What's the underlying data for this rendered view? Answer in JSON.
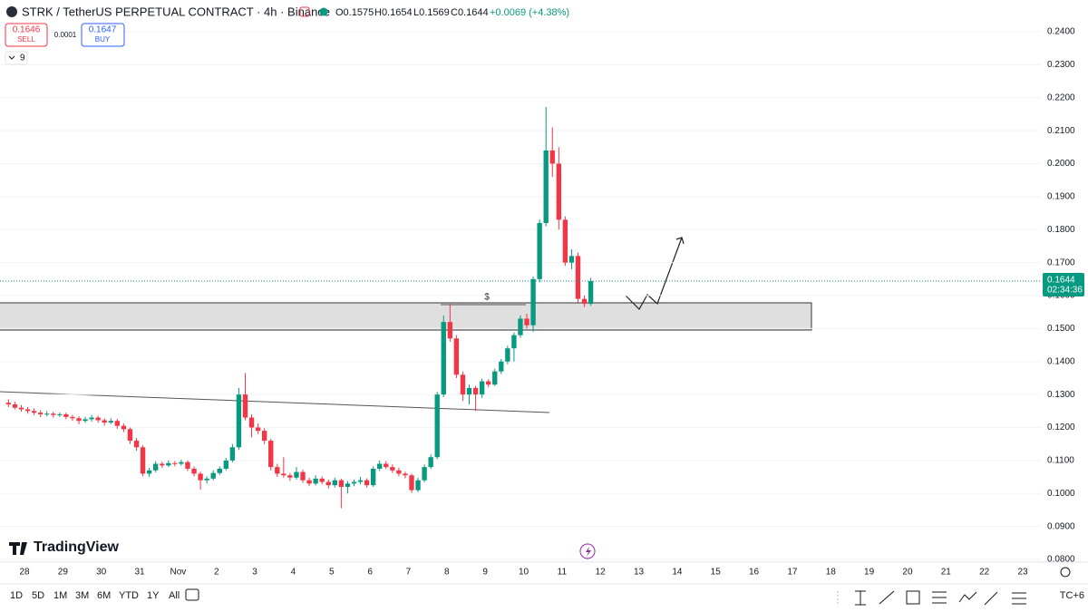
{
  "header": {
    "symbol_title": "STRK / TetherUS PERPETUAL CONTRACT · 4h · Binance",
    "ohlc": [
      "O0.1575",
      "H0.1654",
      "L0.1569",
      "C0.1644"
    ],
    "change": "+0.0069 (+4.38%)",
    "sell_price": "0.1646",
    "sell_label": "SELL",
    "spread": "0.0001",
    "buy_price": "0.1647",
    "buy_label": "BUY",
    "indicator_count": "9"
  },
  "chart_data": {
    "type": "candlestick",
    "x_labels": [
      "28",
      "29",
      "30",
      "31",
      "Nov",
      "2",
      "3",
      "4",
      "5",
      "6",
      "7",
      "8",
      "9",
      "10",
      "11",
      "12",
      "13",
      "14",
      "15",
      "16",
      "17",
      "18",
      "19",
      "20",
      "21",
      "22",
      "23"
    ],
    "candles": [
      [
        0.1275,
        0.1285,
        0.1262,
        0.127
      ],
      [
        0.127,
        0.1278,
        0.1255,
        0.126
      ],
      [
        0.126,
        0.1268,
        0.1248,
        0.1255
      ],
      [
        0.1255,
        0.1262,
        0.1242,
        0.125
      ],
      [
        0.125,
        0.1258,
        0.1238,
        0.1245
      ],
      [
        0.1245,
        0.1252,
        0.1232,
        0.124
      ],
      [
        0.124,
        0.125,
        0.1234,
        0.1242
      ],
      [
        0.1242,
        0.1248,
        0.123,
        0.1238
      ],
      [
        0.1238,
        0.1246,
        0.1232,
        0.124
      ],
      [
        0.124,
        0.1245,
        0.1225,
        0.1232
      ],
      [
        0.1232,
        0.1238,
        0.122,
        0.1228
      ],
      [
        0.1228,
        0.1234,
        0.121,
        0.122
      ],
      [
        0.122,
        0.1232,
        0.1214,
        0.1225
      ],
      [
        0.1225,
        0.1238,
        0.1218,
        0.123
      ],
      [
        0.123,
        0.1236,
        0.1214,
        0.1222
      ],
      [
        0.1222,
        0.1228,
        0.1206,
        0.1215
      ],
      [
        0.1215,
        0.1228,
        0.121,
        0.122
      ],
      [
        0.122,
        0.1226,
        0.1196,
        0.1205
      ],
      [
        0.1205,
        0.1212,
        0.1186,
        0.1195
      ],
      [
        0.1195,
        0.12,
        0.115,
        0.116
      ],
      [
        0.116,
        0.1168,
        0.113,
        0.114
      ],
      [
        0.114,
        0.1146,
        0.1052,
        0.106
      ],
      [
        0.106,
        0.1078,
        0.105,
        0.107
      ],
      [
        0.107,
        0.1098,
        0.1064,
        0.109
      ],
      [
        0.109,
        0.1096,
        0.1078,
        0.1085
      ],
      [
        0.1085,
        0.11,
        0.108,
        0.1092
      ],
      [
        0.1092,
        0.1098,
        0.1082,
        0.109
      ],
      [
        0.109,
        0.1102,
        0.1084,
        0.1095
      ],
      [
        0.1095,
        0.11,
        0.1068,
        0.1075
      ],
      [
        0.1075,
        0.1082,
        0.1052,
        0.106
      ],
      [
        0.106,
        0.1066,
        0.1012,
        0.104
      ],
      [
        0.104,
        0.1052,
        0.103,
        0.1045
      ],
      [
        0.1045,
        0.107,
        0.104,
        0.1062
      ],
      [
        0.1062,
        0.1082,
        0.1056,
        0.1075
      ],
      [
        0.1075,
        0.1108,
        0.107,
        0.11
      ],
      [
        0.11,
        0.115,
        0.1094,
        0.114
      ],
      [
        0.114,
        0.132,
        0.1132,
        0.13
      ],
      [
        0.13,
        0.1365,
        0.1222,
        0.123
      ],
      [
        0.123,
        0.124,
        0.117,
        0.12
      ],
      [
        0.12,
        0.1212,
        0.118,
        0.119
      ],
      [
        0.119,
        0.1198,
        0.115,
        0.116
      ],
      [
        0.116,
        0.1166,
        0.107,
        0.108
      ],
      [
        0.108,
        0.109,
        0.105,
        0.106
      ],
      [
        0.106,
        0.111,
        0.1048,
        0.1055
      ],
      [
        0.1055,
        0.1062,
        0.1038,
        0.1048
      ],
      [
        0.1048,
        0.108,
        0.1042,
        0.1065
      ],
      [
        0.1065,
        0.1072,
        0.1032,
        0.104
      ],
      [
        0.104,
        0.1048,
        0.1022,
        0.103
      ],
      [
        0.103,
        0.1055,
        0.1024,
        0.1045
      ],
      [
        0.1045,
        0.1052,
        0.1028,
        0.1035
      ],
      [
        0.1035,
        0.1042,
        0.1015,
        0.1025
      ],
      [
        0.1025,
        0.1048,
        0.1018,
        0.104
      ],
      [
        0.104,
        0.1045,
        0.0955,
        0.102
      ],
      [
        0.102,
        0.1038,
        0.1,
        0.103
      ],
      [
        0.103,
        0.1042,
        0.1022,
        0.1035
      ],
      [
        0.1035,
        0.105,
        0.1028,
        0.104
      ],
      [
        0.104,
        0.1046,
        0.1018,
        0.1025
      ],
      [
        0.1025,
        0.1082,
        0.102,
        0.1075
      ],
      [
        0.1075,
        0.11,
        0.1068,
        0.109
      ],
      [
        0.109,
        0.1098,
        0.1074,
        0.108
      ],
      [
        0.108,
        0.1088,
        0.1062,
        0.107
      ],
      [
        0.107,
        0.1078,
        0.1052,
        0.106
      ],
      [
        0.106,
        0.1066,
        0.1046,
        0.1055
      ],
      [
        0.1055,
        0.106,
        0.1002,
        0.101
      ],
      [
        0.101,
        0.1048,
        0.1004,
        0.104
      ],
      [
        0.104,
        0.1088,
        0.1034,
        0.108
      ],
      [
        0.108,
        0.1118,
        0.1074,
        0.111
      ],
      [
        0.111,
        0.1308,
        0.1104,
        0.13
      ],
      [
        0.13,
        0.154,
        0.1292,
        0.152
      ],
      [
        0.152,
        0.1575,
        0.146,
        0.147
      ],
      [
        0.147,
        0.148,
        0.135,
        0.136
      ],
      [
        0.136,
        0.137,
        0.128,
        0.13
      ],
      [
        0.13,
        0.133,
        0.127,
        0.132
      ],
      [
        0.132,
        0.1326,
        0.125,
        0.13
      ],
      [
        0.13,
        0.1348,
        0.129,
        0.134
      ],
      [
        0.134,
        0.1346,
        0.1322,
        0.133
      ],
      [
        0.133,
        0.1378,
        0.1326,
        0.137
      ],
      [
        0.137,
        0.1408,
        0.1362,
        0.14
      ],
      [
        0.14,
        0.1448,
        0.1392,
        0.144
      ],
      [
        0.144,
        0.1488,
        0.14,
        0.148
      ],
      [
        0.148,
        0.154,
        0.1472,
        0.153
      ],
      [
        0.153,
        0.1545,
        0.15,
        0.151
      ],
      [
        0.151,
        0.1658,
        0.149,
        0.165
      ],
      [
        0.165,
        0.183,
        0.164,
        0.182
      ],
      [
        0.182,
        0.2172,
        0.181,
        0.204
      ],
      [
        0.204,
        0.211,
        0.196,
        0.2
      ],
      [
        0.2,
        0.205,
        0.18,
        0.183
      ],
      [
        0.183,
        0.184,
        0.169,
        0.17
      ],
      [
        0.17,
        0.174,
        0.168,
        0.172
      ],
      [
        0.172,
        0.173,
        0.158,
        0.159
      ],
      [
        0.159,
        0.16,
        0.1565,
        0.1575
      ],
      [
        0.1575,
        0.1654,
        0.1569,
        0.1644
      ]
    ],
    "ylim": [
      0.08,
      0.24
    ],
    "yticks": [
      {
        "value": 0.08,
        "label": "0.0800"
      },
      {
        "value": 0.09,
        "label": "0.0900"
      },
      {
        "value": 0.1,
        "label": "0.1000"
      },
      {
        "value": 0.11,
        "label": "0.1100"
      },
      {
        "value": 0.12,
        "label": "0.1200"
      },
      {
        "value": 0.13,
        "label": "0.1300"
      },
      {
        "value": 0.14,
        "label": "0.1400"
      },
      {
        "value": 0.15,
        "label": "0.1500"
      },
      {
        "value": 0.16,
        "label": "0.1600"
      },
      {
        "value": 0.17,
        "label": "0.1700"
      },
      {
        "value": 0.18,
        "label": "0.1800"
      },
      {
        "value": 0.19,
        "label": "0.1900"
      },
      {
        "value": 0.2,
        "label": "0.2000"
      },
      {
        "value": 0.21,
        "label": "0.2100"
      },
      {
        "value": 0.22,
        "label": "0.2200"
      },
      {
        "value": 0.23,
        "label": "0.2300"
      },
      {
        "value": 0.24,
        "label": "0.2400"
      }
    ],
    "last_price": {
      "value": 0.1644,
      "label": "0.1644",
      "countdown": "02:34:36"
    },
    "up_color": "#089981",
    "down_color": "#f23645",
    "annotation": "$"
  },
  "footer": {
    "timeframes": [
      "1D",
      "5D",
      "1M",
      "3M",
      "6M",
      "YTD",
      "1Y",
      "All"
    ],
    "timezone": "TC+6",
    "watermark": "TradingView"
  }
}
